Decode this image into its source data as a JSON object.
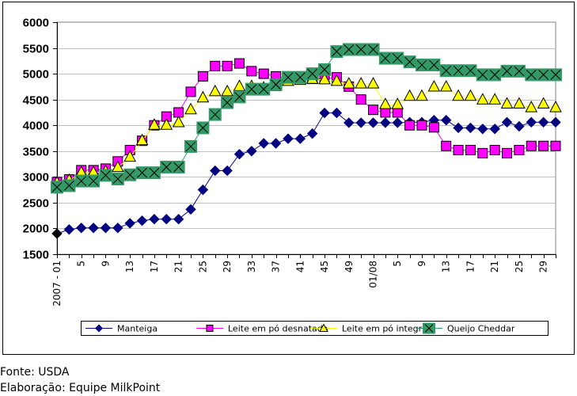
{
  "chart_data": {
    "type": "line",
    "title": "",
    "xlabel": "",
    "ylabel": "",
    "ylim": [
      1500,
      6000
    ],
    "ytick_step": 500,
    "yticks": [
      "1500",
      "2000",
      "2500",
      "3000",
      "3500",
      "4000",
      "4500",
      "5000",
      "5500",
      "6000"
    ],
    "grid": true,
    "legend_position": "bottom",
    "x": [
      "2007-01",
      "2007-03",
      "2007-05",
      "2007-07",
      "2007-09",
      "2007-11",
      "2007-13",
      "2007-15",
      "2007-17",
      "2007-19",
      "2007-21",
      "2007-23",
      "2007-25",
      "2007-27",
      "2007-29",
      "2007-31",
      "2007-33",
      "2007-35",
      "2007-37",
      "2007-39",
      "2007-41",
      "2007-43",
      "2007-45",
      "2007-47",
      "2007-49",
      "2007-51",
      "2008-01",
      "2008-03",
      "2008-05",
      "2008-07",
      "2008-09",
      "2008-11",
      "2008-13",
      "2008-15",
      "2008-17",
      "2008-19",
      "2008-21",
      "2008-23",
      "2008-25",
      "2008-27",
      "2008-29",
      "2008-31"
    ],
    "xtick_labels": [
      {
        "index": 0,
        "label": "2007 - 01"
      },
      {
        "index": 2,
        "label": "5"
      },
      {
        "index": 4,
        "label": "9"
      },
      {
        "index": 6,
        "label": "13"
      },
      {
        "index": 8,
        "label": "17"
      },
      {
        "index": 10,
        "label": "21"
      },
      {
        "index": 12,
        "label": "25"
      },
      {
        "index": 14,
        "label": "29"
      },
      {
        "index": 16,
        "label": "33"
      },
      {
        "index": 18,
        "label": "37"
      },
      {
        "index": 20,
        "label": "41"
      },
      {
        "index": 22,
        "label": "45"
      },
      {
        "index": 24,
        "label": "49"
      },
      {
        "index": 26,
        "label": "01/08"
      },
      {
        "index": 28,
        "label": "5"
      },
      {
        "index": 30,
        "label": "9"
      },
      {
        "index": 32,
        "label": "13"
      },
      {
        "index": 34,
        "label": "17"
      },
      {
        "index": 36,
        "label": "21"
      },
      {
        "index": 38,
        "label": "25"
      },
      {
        "index": 40,
        "label": "29"
      }
    ],
    "series": [
      {
        "name": "Manteiga",
        "marker": "diamond",
        "line_color": "#000080",
        "marker_color": "#000080",
        "values": [
          1900,
          1980,
          2010,
          2010,
          2010,
          2010,
          2100,
          2150,
          2180,
          2180,
          2180,
          2370,
          2750,
          3120,
          3120,
          3440,
          3500,
          3650,
          3650,
          3740,
          3740,
          3840,
          4240,
          4240,
          4050,
          4050,
          4050,
          4050,
          4050,
          4060,
          4060,
          4100,
          4100,
          3950,
          3950,
          3930,
          3930,
          4060,
          3980,
          4060,
          4060,
          4060
        ]
      },
      {
        "name": "Leite em pó desnatado",
        "marker": "square",
        "line_color": "#ff00ff",
        "marker_color": "#ff00ff",
        "values": [
          2900,
          2950,
          3130,
          3130,
          3160,
          3300,
          3520,
          3700,
          4000,
          4170,
          4250,
          4650,
          4950,
          5150,
          5150,
          5200,
          5050,
          5000,
          4950,
          4920,
          4910,
          4900,
          4900,
          4930,
          4750,
          4500,
          4300,
          4250,
          4250,
          4000,
          4000,
          3960,
          3600,
          3520,
          3520,
          3460,
          3520,
          3460,
          3520,
          3600,
          3600,
          3600
        ]
      },
      {
        "name": "Leite em pó integral",
        "marker": "triangle",
        "line_color": "#ffff00",
        "marker_color": "#ffff00",
        "values": [
          2880,
          2930,
          3080,
          3080,
          3100,
          3180,
          3380,
          3700,
          4000,
          4000,
          4050,
          4300,
          4530,
          4650,
          4650,
          4750,
          4750,
          4720,
          4750,
          4850,
          4870,
          4890,
          4880,
          4850,
          4800,
          4800,
          4800,
          4400,
          4400,
          4560,
          4560,
          4740,
          4740,
          4560,
          4560,
          4490,
          4490,
          4410,
          4410,
          4340,
          4410,
          4340
        ]
      },
      {
        "name": "Queijo Cheddar",
        "marker": "x-square",
        "line_color": "#339966",
        "marker_color": "#339966",
        "values": [
          2800,
          2830,
          2920,
          2920,
          3030,
          2960,
          3040,
          3080,
          3080,
          3190,
          3190,
          3590,
          3950,
          4210,
          4440,
          4550,
          4700,
          4700,
          4790,
          4930,
          4930,
          5000,
          5080,
          5430,
          5470,
          5470,
          5470,
          5300,
          5300,
          5230,
          5170,
          5170,
          5060,
          5060,
          5060,
          4980,
          4980,
          5050,
          5050,
          4980,
          4980,
          4980
        ]
      }
    ],
    "highlighted_point": {
      "series": "Manteiga",
      "index": 0,
      "color": "#000000"
    }
  },
  "footer": {
    "source": "Fonte: USDA",
    "credit": "Elaboração: Equipe MilkPoint"
  },
  "colors": {
    "gridline": "#c0c0c0",
    "plot_border": "#808080",
    "axis": "#000000",
    "marker_stroke": "#000000"
  }
}
